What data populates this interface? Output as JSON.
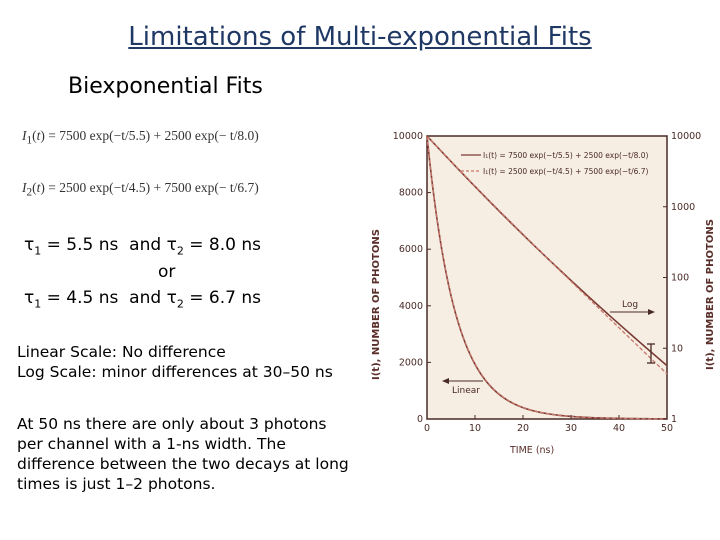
{
  "slide": {
    "title": "Limitations of Multi-exponential Fits",
    "subtitle": "Biexponential Fits",
    "eq1_lhs": "I",
    "eq1_rhs": " = 7500 exp(−t/5.5) + 2500 exp(− t/8.0)",
    "eq2_lhs": "I",
    "eq2_rhs": " = 2500 exp(−t/4.5) + 7500 exp(− t/6.7)",
    "tau_line1_a": " = 5.5 ns  and ",
    "tau_line1_b": " = 8.0 ns",
    "or": "or",
    "tau_line2_a": " = 4.5 ns  and ",
    "tau_line2_b": " = 6.7 ns",
    "linear_note": "Linear Scale: No difference",
    "log_note": "Log Scale: minor differences at 30–50 ns",
    "photon_note": "At 50 ns there are only about 3 photons per channel with a 1-ns width. The difference between the two decays at long times is just 1–2 photons."
  },
  "chart_data": {
    "type": "line",
    "title": "",
    "xlabel": "TIME (ns)",
    "ylabel_left": "I(t), NUMBER OF PHOTONS",
    "ylabel_right": "I(t), NUMBER OF PHOTONS",
    "xlim": [
      0,
      50
    ],
    "ylim_linear": [
      0,
      10000
    ],
    "ylim_log": [
      1,
      10000
    ],
    "x_ticks": [
      "0",
      "10",
      "20",
      "30",
      "40",
      "50"
    ],
    "y_ticks_left": [
      "0",
      "2000",
      "4000",
      "6000",
      "8000",
      "10000"
    ],
    "y_ticks_right": [
      "1",
      "10",
      "100",
      "1000",
      "10000"
    ],
    "legend": [
      "I₁(t) = 7500 exp(−t/5.5) + 2500 exp(−t/8.0)",
      "I₁(t) = 2500 exp(−t/4.5) + 7500 exp(−t/6.7)"
    ],
    "annotations": [
      "Log",
      "Linear"
    ],
    "series": [
      {
        "name": "I₁(t) = 7500 exp(−t/5.5) + 2500 exp(−t/8.0)",
        "a1": 7500,
        "tau1": 5.5,
        "a2": 2500,
        "tau2": 8.0
      },
      {
        "name": "I₁(t) = 2500 exp(−t/4.5) + 7500 exp(−t/6.7)",
        "a1": 2500,
        "tau1": 4.5,
        "a2": 7500,
        "tau2": 6.7
      }
    ],
    "colors": {
      "paper": "#f6eee2",
      "line": "#7a3b35",
      "dashed": "#c9776b"
    },
    "grid": false
  }
}
